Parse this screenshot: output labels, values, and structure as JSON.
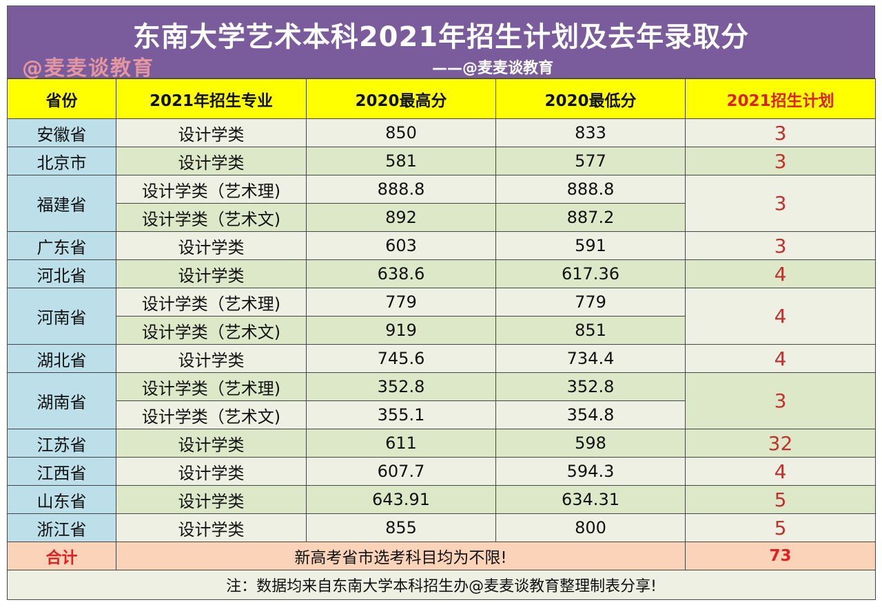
{
  "title": "东南大学艺术本科2021年招生计划及去年录取分",
  "subtitle": "——@麦麦谈教育",
  "headers": [
    "省份",
    "2021年招生专业",
    "2020最高分",
    "2020最低分",
    "2021招生计划"
  ],
  "rows": [
    {
      "province": "安徽省",
      "majors": [
        {
          "name": "设计学类",
          "max": "850",
          "min": "833"
        }
      ],
      "plan": "3"
    },
    {
      "province": "北京市",
      "majors": [
        {
          "name": "设计学类",
          "max": "581",
          "min": "577"
        }
      ],
      "plan": "3"
    },
    {
      "province": "福建省",
      "majors": [
        {
          "name": "设计学类（艺术理)",
          "max": "888.8",
          "min": "888.8"
        },
        {
          "name": "设计学类（艺术文)",
          "max": "892",
          "min": "887.2"
        }
      ],
      "plan": "3"
    },
    {
      "province": "广东省",
      "majors": [
        {
          "name": "设计学类",
          "max": "603",
          "min": "591"
        }
      ],
      "plan": "3"
    },
    {
      "province": "河北省",
      "majors": [
        {
          "name": "设计学类",
          "max": "638.6",
          "min": "617.36"
        }
      ],
      "plan": "4"
    },
    {
      "province": "河南省",
      "majors": [
        {
          "name": "设计学类（艺术理)",
          "max": "779",
          "min": "779"
        },
        {
          "name": "设计学类（艺术文)",
          "max": "919",
          "min": "851"
        }
      ],
      "plan": "4"
    },
    {
      "province": "湖北省",
      "majors": [
        {
          "name": "设计学类",
          "max": "745.6",
          "min": "734.4"
        }
      ],
      "plan": "4"
    },
    {
      "province": "湖南省",
      "majors": [
        {
          "name": "设计学类（艺术理)",
          "max": "352.8",
          "min": "352.8"
        },
        {
          "name": "设计学类（艺术文)",
          "max": "355.1",
          "min": "354.8"
        }
      ],
      "plan": "3"
    },
    {
      "province": "江苏省",
      "majors": [
        {
          "name": "设计学类",
          "max": "611",
          "min": "598"
        }
      ],
      "plan": "32"
    },
    {
      "province": "江西省",
      "majors": [
        {
          "name": "设计学类",
          "max": "607.7",
          "min": "594.3"
        }
      ],
      "plan": "4"
    },
    {
      "province": "山东省",
      "majors": [
        {
          "name": "设计学类",
          "max": "643.91",
          "min": "634.31"
        }
      ],
      "plan": "5"
    },
    {
      "province": "浙江省",
      "majors": [
        {
          "name": "设计学类",
          "max": "855",
          "min": "800"
        }
      ],
      "plan": "5"
    }
  ],
  "total": {
    "label": "合计",
    "note": "新高考省市选考科目均为不限!",
    "value": "73"
  },
  "footnote": "注：数据均来自东南大学本科招生办@麦麦谈教育整理制表分享!",
  "watermark": "@麦麦谈教育",
  "colors": {
    "title_bg": "#7a5c9c",
    "header_bg": "#ffff00",
    "province_bg": "#bddfea",
    "total_bg": "#fbd3b8",
    "accent_red": "#e02020"
  }
}
